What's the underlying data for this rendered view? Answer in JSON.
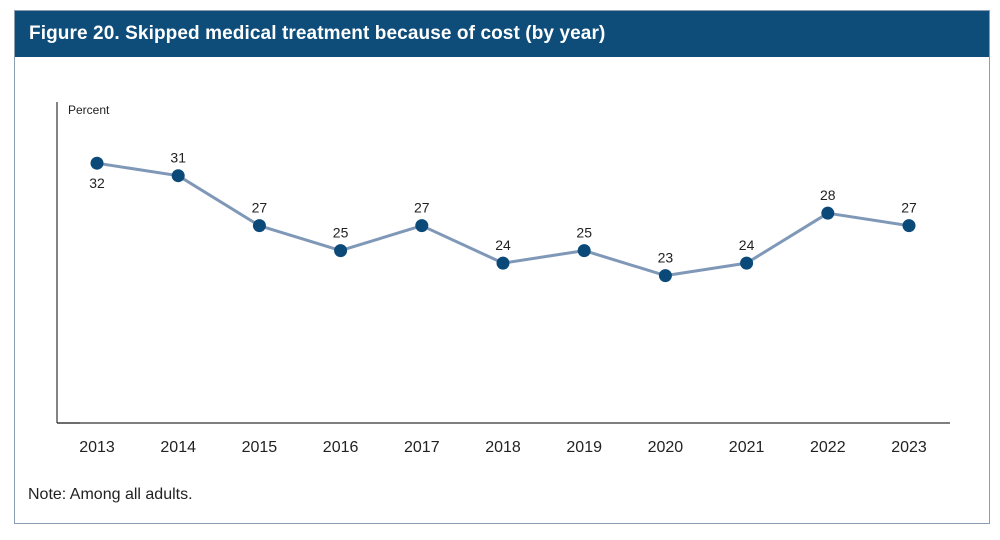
{
  "figure": {
    "title": "Figure 20. Skipped medical treatment because of cost (by year)",
    "note": "Note: Among all adults."
  },
  "colors": {
    "header_bg": "#0e4d7a",
    "line": "#7f98b8",
    "marker": "#0b4a78",
    "frame": "#8a9db5"
  },
  "chart_data": {
    "type": "line",
    "title": "Figure 20. Skipped medical treatment because of cost (by year)",
    "xlabel": "",
    "ylabel": "Percent",
    "categories": [
      "2013",
      "2014",
      "2015",
      "2016",
      "2017",
      "2018",
      "2019",
      "2020",
      "2021",
      "2022",
      "2023"
    ],
    "series": [
      {
        "name": "Skipped medical treatment because of cost",
        "values": [
          32,
          31,
          27,
          25,
          27,
          24,
          25,
          23,
          24,
          28,
          27
        ],
        "labels": [
          "32",
          "31",
          "27",
          "25",
          "27",
          "24",
          "25",
          "23",
          "24",
          "28",
          "27"
        ]
      }
    ],
    "label_position": [
      "below",
      "above",
      "above",
      "above",
      "above",
      "above",
      "above",
      "above",
      "above",
      "above",
      "above"
    ],
    "ylim": [
      11.2,
      36.9
    ],
    "grid": false,
    "legend": "none"
  }
}
